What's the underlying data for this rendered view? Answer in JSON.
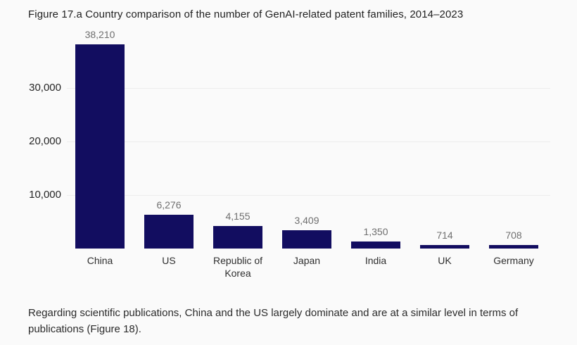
{
  "title": "Figure 17.a Country comparison of the number of GenAI-related patent families, 2014–2023",
  "footer": {
    "text": "Regarding scientific publications, China and the US largely dominate and are at a similar level in terms of publications (Figure 18)."
  },
  "colors": {
    "background": "#fafafa",
    "bar": "#120d60",
    "gridline": "#ececec",
    "tick_label": "#262626",
    "value_label": "#6f6f6f",
    "category_label": "#2e2e2e"
  },
  "chart_data": {
    "type": "bar",
    "title": "Figure 17.a Country comparison of the number of GenAI-related patent families, 2014–2023",
    "categories": [
      "China",
      "US",
      "Republic of Korea",
      "Japan",
      "India",
      "UK",
      "Germany"
    ],
    "values": [
      38210,
      6276,
      4155,
      3409,
      1350,
      714,
      708
    ],
    "value_labels": [
      "38,210",
      "6,276",
      "4,155",
      "3,409",
      "1,350",
      "714",
      "708"
    ],
    "xlabel": "",
    "ylabel": "",
    "ylim": [
      0,
      39000
    ],
    "yticks": [
      {
        "value": 10000,
        "label": "10,000"
      },
      {
        "value": 20000,
        "label": "20,000"
      },
      {
        "value": 30000,
        "label": "30,000"
      }
    ],
    "grid": "horizontal-only",
    "legend": "none",
    "bar_color": "#120d60"
  }
}
